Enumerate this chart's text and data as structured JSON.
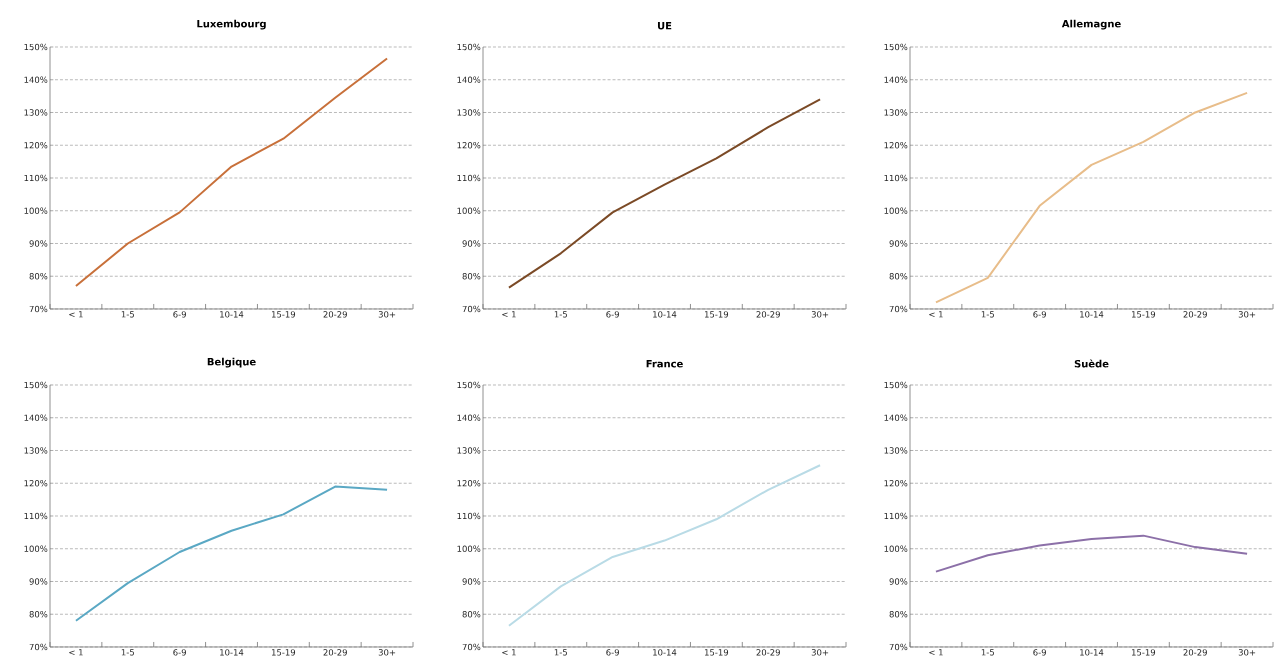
{
  "chart_data": [
    {
      "type": "line",
      "title": "Luxembourg",
      "categories": [
        "< 1",
        "1-5",
        "6-9",
        "10-14",
        "15-19",
        "20-29",
        "30+"
      ],
      "values": [
        77,
        90,
        99.5,
        113.5,
        122,
        134.5,
        146.5
      ],
      "color": "#c8703a",
      "ylim": [
        70,
        150
      ],
      "yticks": [
        {
          "value": 70,
          "label": "70%"
        },
        {
          "value": 80,
          "label": "80%"
        },
        {
          "value": 90,
          "label": "90%"
        },
        {
          "value": 100,
          "label": "100%"
        },
        {
          "value": 110,
          "label": "110%"
        },
        {
          "value": 120,
          "label": "120%"
        },
        {
          "value": 130,
          "label": "130%"
        },
        {
          "value": 140,
          "label": "140%"
        },
        {
          "value": 150,
          "label": "150%"
        }
      ],
      "grid": "y"
    },
    {
      "type": "line",
      "title": "UE",
      "categories": [
        "< 1",
        "1-5",
        "6-9",
        "10-14",
        "15-19",
        "20-29",
        "30+"
      ],
      "values": [
        76.5,
        87,
        99.5,
        108,
        116,
        125.5,
        134
      ],
      "color": "#7b4a26",
      "ylim": [
        70,
        150
      ],
      "yticks": [
        {
          "value": 70,
          "label": "70%"
        },
        {
          "value": 80,
          "label": "80%"
        },
        {
          "value": 90,
          "label": "90%"
        },
        {
          "value": 100,
          "label": "100%"
        },
        {
          "value": 110,
          "label": "110%"
        },
        {
          "value": 120,
          "label": "120%"
        },
        {
          "value": 130,
          "label": "130%"
        },
        {
          "value": 140,
          "label": "140%"
        },
        {
          "value": 150,
          "label": "150%"
        }
      ],
      "grid": "y"
    },
    {
      "type": "line",
      "title": "Allemagne",
      "categories": [
        "< 1",
        "1-5",
        "6-9",
        "10-14",
        "15-19",
        "20-29",
        "30+"
      ],
      "values": [
        72,
        79.5,
        101.5,
        114,
        121,
        130,
        136
      ],
      "color": "#e8bd8a",
      "ylim": [
        70,
        150
      ],
      "yticks": [
        {
          "value": 70,
          "label": "70%"
        },
        {
          "value": 80,
          "label": "80%"
        },
        {
          "value": 90,
          "label": "90%"
        },
        {
          "value": 100,
          "label": "100%"
        },
        {
          "value": 110,
          "label": "110%"
        },
        {
          "value": 120,
          "label": "120%"
        },
        {
          "value": 130,
          "label": "130%"
        },
        {
          "value": 140,
          "label": "140%"
        },
        {
          "value": 150,
          "label": "150%"
        }
      ],
      "grid": "y"
    },
    {
      "type": "line",
      "title": "Belgique",
      "categories": [
        "< 1",
        "1-5",
        "6-9",
        "10-14",
        "15-19",
        "20-29",
        "30+"
      ],
      "values": [
        78,
        89.5,
        99,
        105.5,
        110.5,
        119,
        118
      ],
      "color": "#5aa8c4",
      "ylim": [
        70,
        150
      ],
      "yticks": [
        {
          "value": 70,
          "label": "70%"
        },
        {
          "value": 80,
          "label": "80%"
        },
        {
          "value": 90,
          "label": "90%"
        },
        {
          "value": 100,
          "label": "100%"
        },
        {
          "value": 110,
          "label": "110%"
        },
        {
          "value": 120,
          "label": "120%"
        },
        {
          "value": 130,
          "label": "130%"
        },
        {
          "value": 140,
          "label": "140%"
        },
        {
          "value": 150,
          "label": "150%"
        }
      ],
      "grid": "y"
    },
    {
      "type": "line",
      "title": "France",
      "categories": [
        "< 1",
        "1-5",
        "6-9",
        "10-14",
        "15-19",
        "20-29",
        "30+"
      ],
      "values": [
        76.5,
        88.5,
        97.5,
        102.5,
        109,
        118,
        125.5
      ],
      "color": "#b9dbe6",
      "ylim": [
        70,
        150
      ],
      "yticks": [
        {
          "value": 70,
          "label": "70%"
        },
        {
          "value": 80,
          "label": "80%"
        },
        {
          "value": 90,
          "label": "90%"
        },
        {
          "value": 100,
          "label": "100%"
        },
        {
          "value": 110,
          "label": "110%"
        },
        {
          "value": 120,
          "label": "120%"
        },
        {
          "value": 130,
          "label": "130%"
        },
        {
          "value": 140,
          "label": "140%"
        },
        {
          "value": 150,
          "label": "150%"
        }
      ],
      "grid": "y"
    },
    {
      "type": "line",
      "title": "Suède",
      "categories": [
        "< 1",
        "1-5",
        "6-9",
        "10-14",
        "15-19",
        "20-29",
        "30+"
      ],
      "values": [
        93,
        98,
        101,
        103,
        104,
        100.5,
        98.5
      ],
      "color": "#8c70a8",
      "ylim": [
        70,
        150
      ],
      "yticks": [
        {
          "value": 70,
          "label": "70%"
        },
        {
          "value": 80,
          "label": "80%"
        },
        {
          "value": 90,
          "label": "90%"
        },
        {
          "value": 100,
          "label": "100%"
        },
        {
          "value": 110,
          "label": "110%"
        },
        {
          "value": 120,
          "label": "120%"
        },
        {
          "value": 130,
          "label": "130%"
        },
        {
          "value": 140,
          "label": "140%"
        },
        {
          "value": 150,
          "label": "150%"
        }
      ],
      "grid": "y"
    }
  ]
}
